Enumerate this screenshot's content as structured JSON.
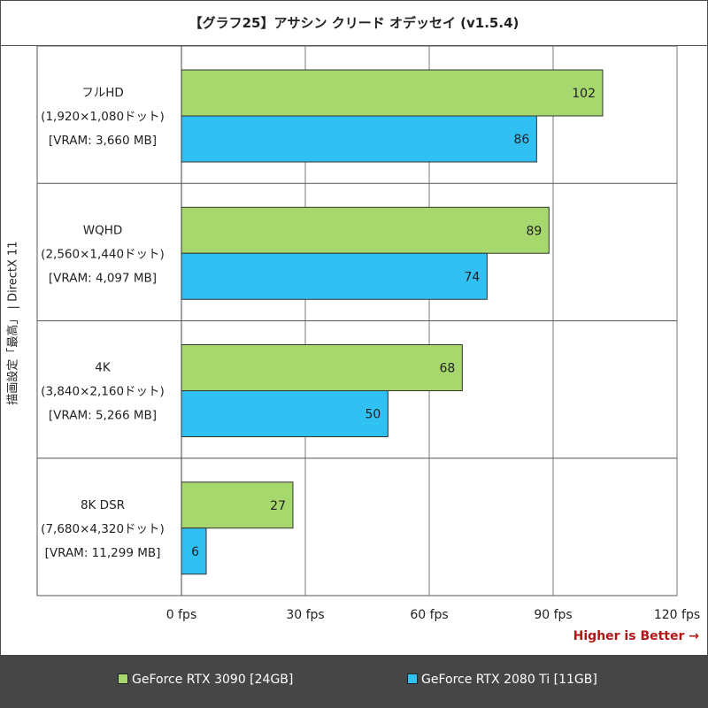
{
  "chart_data": {
    "type": "bar",
    "orientation": "horizontal",
    "title": "【グラフ25】アサシン クリード オデッセイ (v1.5.4)",
    "ylabel": "描画設定「最高」 | DirectX 11",
    "xlim": [
      0,
      120
    ],
    "xticks": [
      0,
      30,
      60,
      90,
      120
    ],
    "xtick_labels": [
      "0 fps",
      "30 fps",
      "60 fps",
      "90 fps",
      "120 fps"
    ],
    "categories": [
      {
        "lines": [
          "フルHD",
          "(1,920×1,080ドット)",
          "[VRAM: 3,660 MB]"
        ]
      },
      {
        "lines": [
          "WQHD",
          "(2,560×1,440ドット)",
          "[VRAM: 4,097 MB]"
        ]
      },
      {
        "lines": [
          "4K",
          "(3,840×2,160ドット)",
          "[VRAM: 5,266 MB]"
        ]
      },
      {
        "lines": [
          "8K DSR",
          "(7,680×4,320ドット)",
          "[VRAM: 11,299 MB]"
        ]
      }
    ],
    "series": [
      {
        "name": "GeForce RTX 3090 [24GB]",
        "color": "#a6d86e",
        "values": [
          102,
          89,
          68,
          27
        ]
      },
      {
        "name": "GeForce RTX 2080 Ti [11GB]",
        "color": "#31c0f2",
        "values": [
          86,
          74,
          50,
          6
        ]
      }
    ],
    "annotation": "Higher is Better →"
  }
}
